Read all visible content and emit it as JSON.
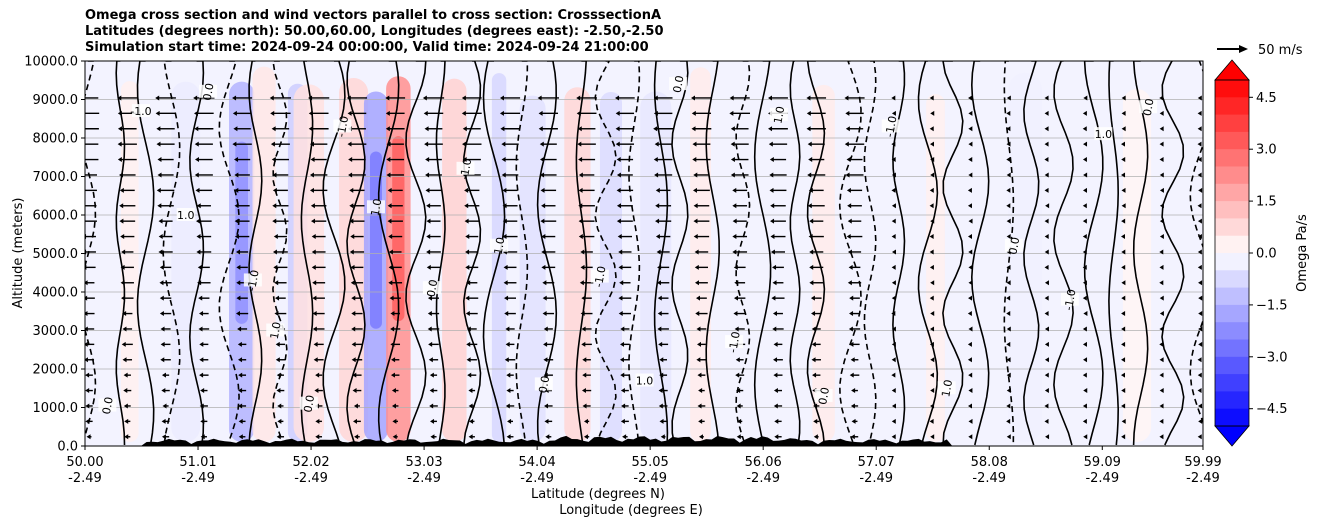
{
  "title_lines": [
    "Omega cross section and wind vectors parallel to cross section: CrosssectionA",
    "Latitudes (degrees north): 50.00,60.00, Longitudes (degrees east): -2.50,-2.50",
    "Simulation start time: 2024-09-24 00:00:00, Valid time: 2024-09-24 21:00:00"
  ],
  "quiver_key": "50 m/s",
  "chart_data": {
    "type": "heatmap",
    "subtype": "filled contour cross-section with quiver",
    "title": "Omega cross section and wind vectors parallel to cross section: CrosssectionA",
    "ylabel": "Altitude (meters)",
    "xlabel_lat": "Latitude (degrees N)",
    "xlabel_lon": "Longitude (degrees E)",
    "ylim": [
      0,
      10000
    ],
    "yticks": [
      "0.0",
      "1000.0",
      "2000.0",
      "3000.0",
      "4000.0",
      "5000.0",
      "6000.0",
      "7000.0",
      "8000.0",
      "9000.0",
      "10000.0"
    ],
    "xlim": [
      50.0,
      59.99
    ],
    "xticks": [
      {
        "lat": "50.00",
        "lon": "-2.49"
      },
      {
        "lat": "51.01",
        "lon": "-2.49"
      },
      {
        "lat": "52.02",
        "lon": "-2.49"
      },
      {
        "lat": "53.03",
        "lon": "-2.49"
      },
      {
        "lat": "54.04",
        "lon": "-2.49"
      },
      {
        "lat": "55.05",
        "lon": "-2.49"
      },
      {
        "lat": "56.06",
        "lon": "-2.49"
      },
      {
        "lat": "57.07",
        "lon": "-2.49"
      },
      {
        "lat": "58.08",
        "lon": "-2.49"
      },
      {
        "lat": "59.09",
        "lon": "-2.49"
      },
      {
        "lat": "59.99",
        "lon": "-2.49"
      }
    ],
    "grid": "horizontal",
    "colorbar": {
      "label": "Omega Pa/s",
      "min": -5.0,
      "max": 5.0,
      "ticks": [
        "−4.5",
        "−3.0",
        "−1.5",
        "0.0",
        "1.5",
        "3.0",
        "4.5"
      ],
      "tick_values": [
        -4.5,
        -3.0,
        -1.5,
        0.0,
        1.5,
        3.0,
        4.5
      ],
      "extend": "both",
      "colors": {
        "neg_max": "#0000ff",
        "zero": "#ffffff",
        "pos_max": "#ff0000"
      }
    },
    "contour_levels": [
      -1.0,
      0.0,
      1.0
    ],
    "contour_labels": [
      "0.0",
      "-1.0",
      "1.0"
    ],
    "omega_columns": [
      {
        "lat": 50.4,
        "value": 0.3
      },
      {
        "lat": 50.9,
        "value": -0.4
      },
      {
        "lat": 51.4,
        "value": -1.5
      },
      {
        "lat": 51.6,
        "value": 0.5
      },
      {
        "lat": 51.9,
        "value": -1.0
      },
      {
        "lat": 52.0,
        "value": 0.6
      },
      {
        "lat": 52.4,
        "value": 0.8
      },
      {
        "lat": 52.6,
        "value": -1.8
      },
      {
        "lat": 52.8,
        "value": 2.2
      },
      {
        "lat": 53.3,
        "value": 0.9
      },
      {
        "lat": 53.7,
        "value": -0.8
      },
      {
        "lat": 54.0,
        "value": -0.6
      },
      {
        "lat": 54.4,
        "value": 0.8
      },
      {
        "lat": 54.7,
        "value": -0.7
      },
      {
        "lat": 55.1,
        "value": -0.5
      },
      {
        "lat": 55.5,
        "value": 0.4
      },
      {
        "lat": 56.6,
        "value": 0.4
      },
      {
        "lat": 57.6,
        "value": 0.3
      },
      {
        "lat": 58.4,
        "value": -0.3
      },
      {
        "lat": 59.4,
        "value": 0.2
      }
    ],
    "quiver": {
      "key_speed_ms": 50,
      "direction": "southward (left-pointing)"
    }
  }
}
